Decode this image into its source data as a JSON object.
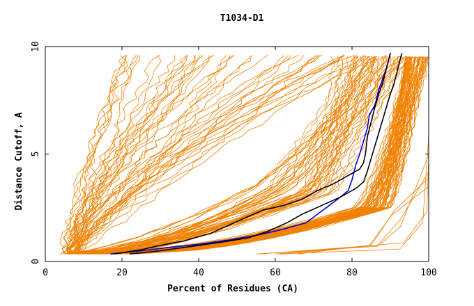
{
  "chart_data": {
    "type": "line",
    "title": "T1034-D1",
    "xlabel": "Percent of Residues (CA)",
    "ylabel": "Distance Cutoff, A",
    "xlim": [
      0,
      100
    ],
    "ylim": [
      0,
      10
    ],
    "x_ticks": [
      0,
      20,
      40,
      60,
      80,
      100
    ],
    "y_ticks": [
      0,
      5,
      10
    ],
    "grid": false,
    "legend": "none",
    "colors": {
      "background_series": "#f08000",
      "highlight_blue": "#0000dd",
      "highlight_black": "#000000",
      "axis": "#000000"
    },
    "series": [
      {
        "color": "#0000dd",
        "points": [
          [
            17,
            0.35
          ],
          [
            25,
            0.5
          ],
          [
            32,
            0.65
          ],
          [
            40,
            0.8
          ],
          [
            48,
            1.0
          ],
          [
            56,
            1.25
          ],
          [
            62,
            1.5
          ],
          [
            68,
            1.8
          ],
          [
            71,
            2.2
          ],
          [
            74,
            2.6
          ],
          [
            77,
            3.0
          ],
          [
            79,
            3.3
          ],
          [
            80,
            3.8
          ],
          [
            81,
            4.5
          ],
          [
            82,
            5.0
          ],
          [
            83,
            5.6
          ],
          [
            84,
            6.2
          ],
          [
            84.5,
            6.8
          ],
          [
            86,
            7.3
          ],
          [
            87,
            8.0
          ],
          [
            88,
            8.5
          ],
          [
            89,
            9.0
          ],
          [
            90,
            9.7
          ]
        ]
      },
      {
        "color": "#000000",
        "points": [
          [
            18,
            0.35
          ],
          [
            25,
            0.55
          ],
          [
            30,
            0.75
          ],
          [
            36,
            0.95
          ],
          [
            43,
            1.3
          ],
          [
            48,
            1.7
          ],
          [
            53,
            2.1
          ],
          [
            57,
            2.4
          ],
          [
            62,
            2.6
          ],
          [
            67,
            2.9
          ],
          [
            71,
            3.3
          ],
          [
            75,
            3.6
          ],
          [
            79,
            4.0
          ],
          [
            82,
            4.3
          ],
          [
            83,
            4.6
          ],
          [
            83.5,
            5.0
          ],
          [
            84,
            5.8
          ],
          [
            85,
            6.5
          ],
          [
            86,
            7.2
          ],
          [
            87,
            7.8
          ],
          [
            88,
            8.3
          ],
          [
            89,
            9.0
          ],
          [
            90,
            9.7
          ]
        ]
      },
      {
        "color": "#000000",
        "points": [
          [
            22,
            0.35
          ],
          [
            30,
            0.5
          ],
          [
            38,
            0.7
          ],
          [
            46,
            0.9
          ],
          [
            53,
            1.1
          ],
          [
            58,
            1.4
          ],
          [
            63,
            1.8
          ],
          [
            67,
            2.2
          ],
          [
            72,
            2.6
          ],
          [
            77,
            3.0
          ],
          [
            81,
            3.4
          ],
          [
            83,
            3.7
          ],
          [
            84,
            4.2
          ],
          [
            85,
            4.8
          ],
          [
            86,
            5.4
          ],
          [
            87,
            6.0
          ],
          [
            88,
            6.6
          ],
          [
            89,
            7.2
          ],
          [
            90,
            7.8
          ],
          [
            91,
            8.3
          ],
          [
            92,
            9.0
          ],
          [
            93,
            9.7
          ]
        ]
      }
    ]
  }
}
